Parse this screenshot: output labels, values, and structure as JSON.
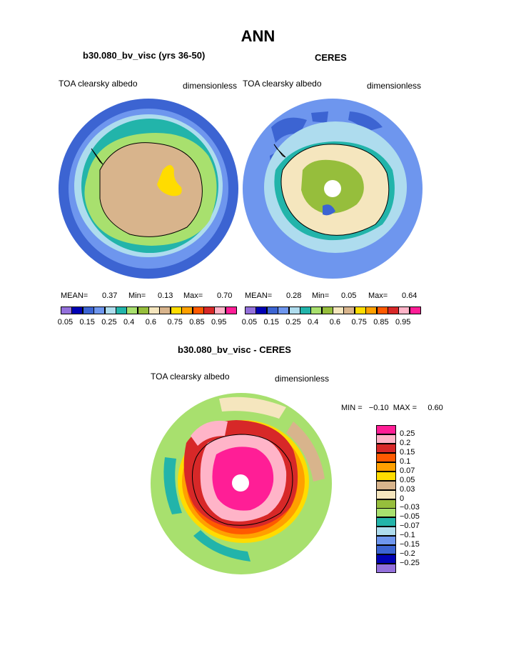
{
  "page": {
    "title": "ANN"
  },
  "panel_left": {
    "title": "b30.080_bv_visc (yrs 36-50)",
    "left_label": "TOA clearsky albedo",
    "right_label": "dimensionless",
    "mean_label": "MEAN=",
    "mean": "0.37",
    "min_label": "Min=",
    "min": "0.13",
    "max_label": "Max=",
    "max": "0.70"
  },
  "panel_right": {
    "title": "CERES",
    "left_label": "TOA clearsky albedo",
    "right_label": "dimensionless",
    "mean_label": "MEAN=",
    "mean": "0.28",
    "min_label": "Min=",
    "min": "0.05",
    "max_label": "Max=",
    "max": "0.64"
  },
  "panel_diff": {
    "title": "b30.080_bv_visc - CERES",
    "left_label": "TOA clearsky albedo",
    "right_label": "dimensionless",
    "minmax_text": "MIN =   −0.10  MAX =     0.60"
  },
  "albedo_colorbar": {
    "colors": [
      "#9370db",
      "#0000b4",
      "#3c64d2",
      "#6e96ee",
      "#aedcee",
      "#22b4aa",
      "#a8e06e",
      "#96be3c",
      "#f5e6be",
      "#d8b48c",
      "#ffdc00",
      "#ffa000",
      "#ff5a00",
      "#d72828",
      "#ffb4c8",
      "#ff1e96"
    ],
    "labels": [
      "0.05",
      "0.15",
      "0.25",
      "0.4",
      "0.6",
      "0.75",
      "0.85",
      "0.95"
    ]
  },
  "diff_colorbar": {
    "colors": [
      "#ff1e96",
      "#ffb4c8",
      "#d72828",
      "#ff5a00",
      "#ffa000",
      "#ffdc00",
      "#d8b48c",
      "#f5e6be",
      "#96be3c",
      "#a8e06e",
      "#22b4aa",
      "#aedcee",
      "#6e96ee",
      "#3c64d2",
      "#0000b4",
      "#9370db"
    ],
    "labels": [
      "0.25",
      "0.2",
      "0.15",
      "0.1",
      "0.07",
      "0.05",
      "0.03",
      "0",
      "−0.03",
      "−0.05",
      "−0.07",
      "−0.1",
      "−0.15",
      "−0.2",
      "−0.25"
    ]
  }
}
